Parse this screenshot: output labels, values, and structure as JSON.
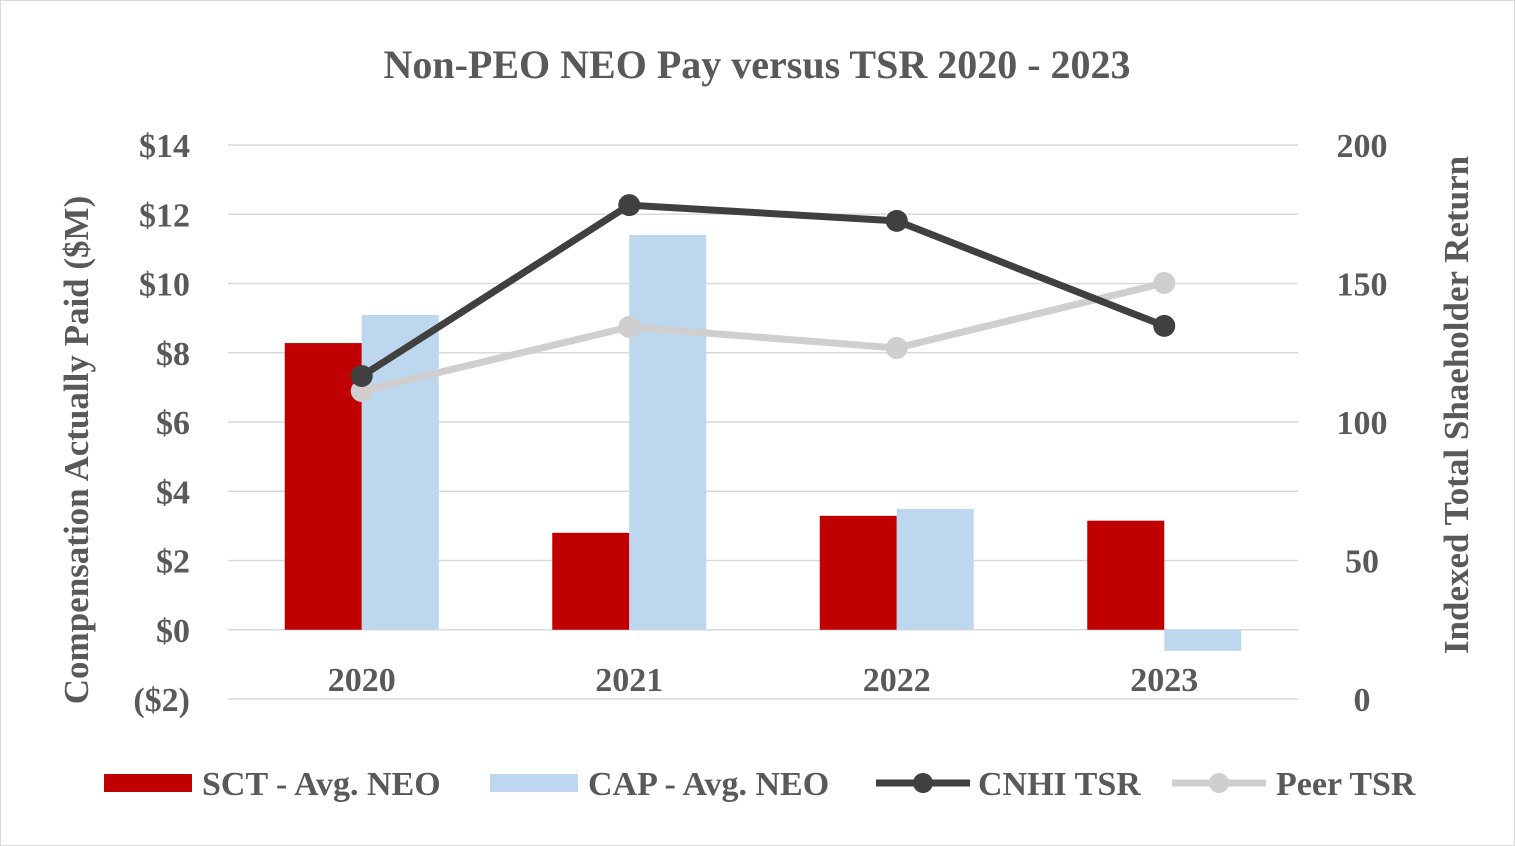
{
  "chart_data": {
    "type": "bar+line",
    "title": "Non-PEO NEO Pay versus TSR 2020 - 2023",
    "categories": [
      "2020",
      "2021",
      "2022",
      "2023"
    ],
    "y_left": {
      "label": "Compensation Actually Paid ($M)",
      "range": [
        -2,
        14
      ],
      "ticks": [
        "($2)",
        "$0",
        "$2",
        "$4",
        "$6",
        "$8",
        "$10",
        "$12",
        "$14"
      ],
      "tick_values": [
        -2,
        0,
        2,
        4,
        6,
        8,
        10,
        12,
        14
      ]
    },
    "y_right": {
      "label": "Indexed Total Shaeholder Return",
      "range": [
        0,
        200
      ],
      "ticks": [
        "0",
        "50",
        "100",
        "150",
        "200"
      ],
      "tick_values": [
        0,
        50,
        100,
        150,
        200
      ]
    },
    "grid": true,
    "legend_position": "bottom",
    "series": [
      {
        "name": "SCT - Avg. NEO",
        "type": "bar",
        "axis": "left",
        "color": "#C00000",
        "values": [
          8.28,
          2.8,
          3.29,
          3.15
        ]
      },
      {
        "name": "CAP - Avg. NEO",
        "type": "bar",
        "axis": "left",
        "color": "#BDD7EE",
        "values": [
          9.09,
          11.4,
          3.49,
          -0.61
        ]
      },
      {
        "name": "CNHI TSR",
        "type": "line",
        "axis": "right",
        "color": "#404040",
        "values": [
          116.6,
          178.3,
          172.6,
          134.7
        ]
      },
      {
        "name": "Peer TSR",
        "type": "line",
        "axis": "right",
        "color": "#D0CECE",
        "values": [
          111.2,
          134.3,
          126.7,
          150.2
        ]
      }
    ]
  }
}
